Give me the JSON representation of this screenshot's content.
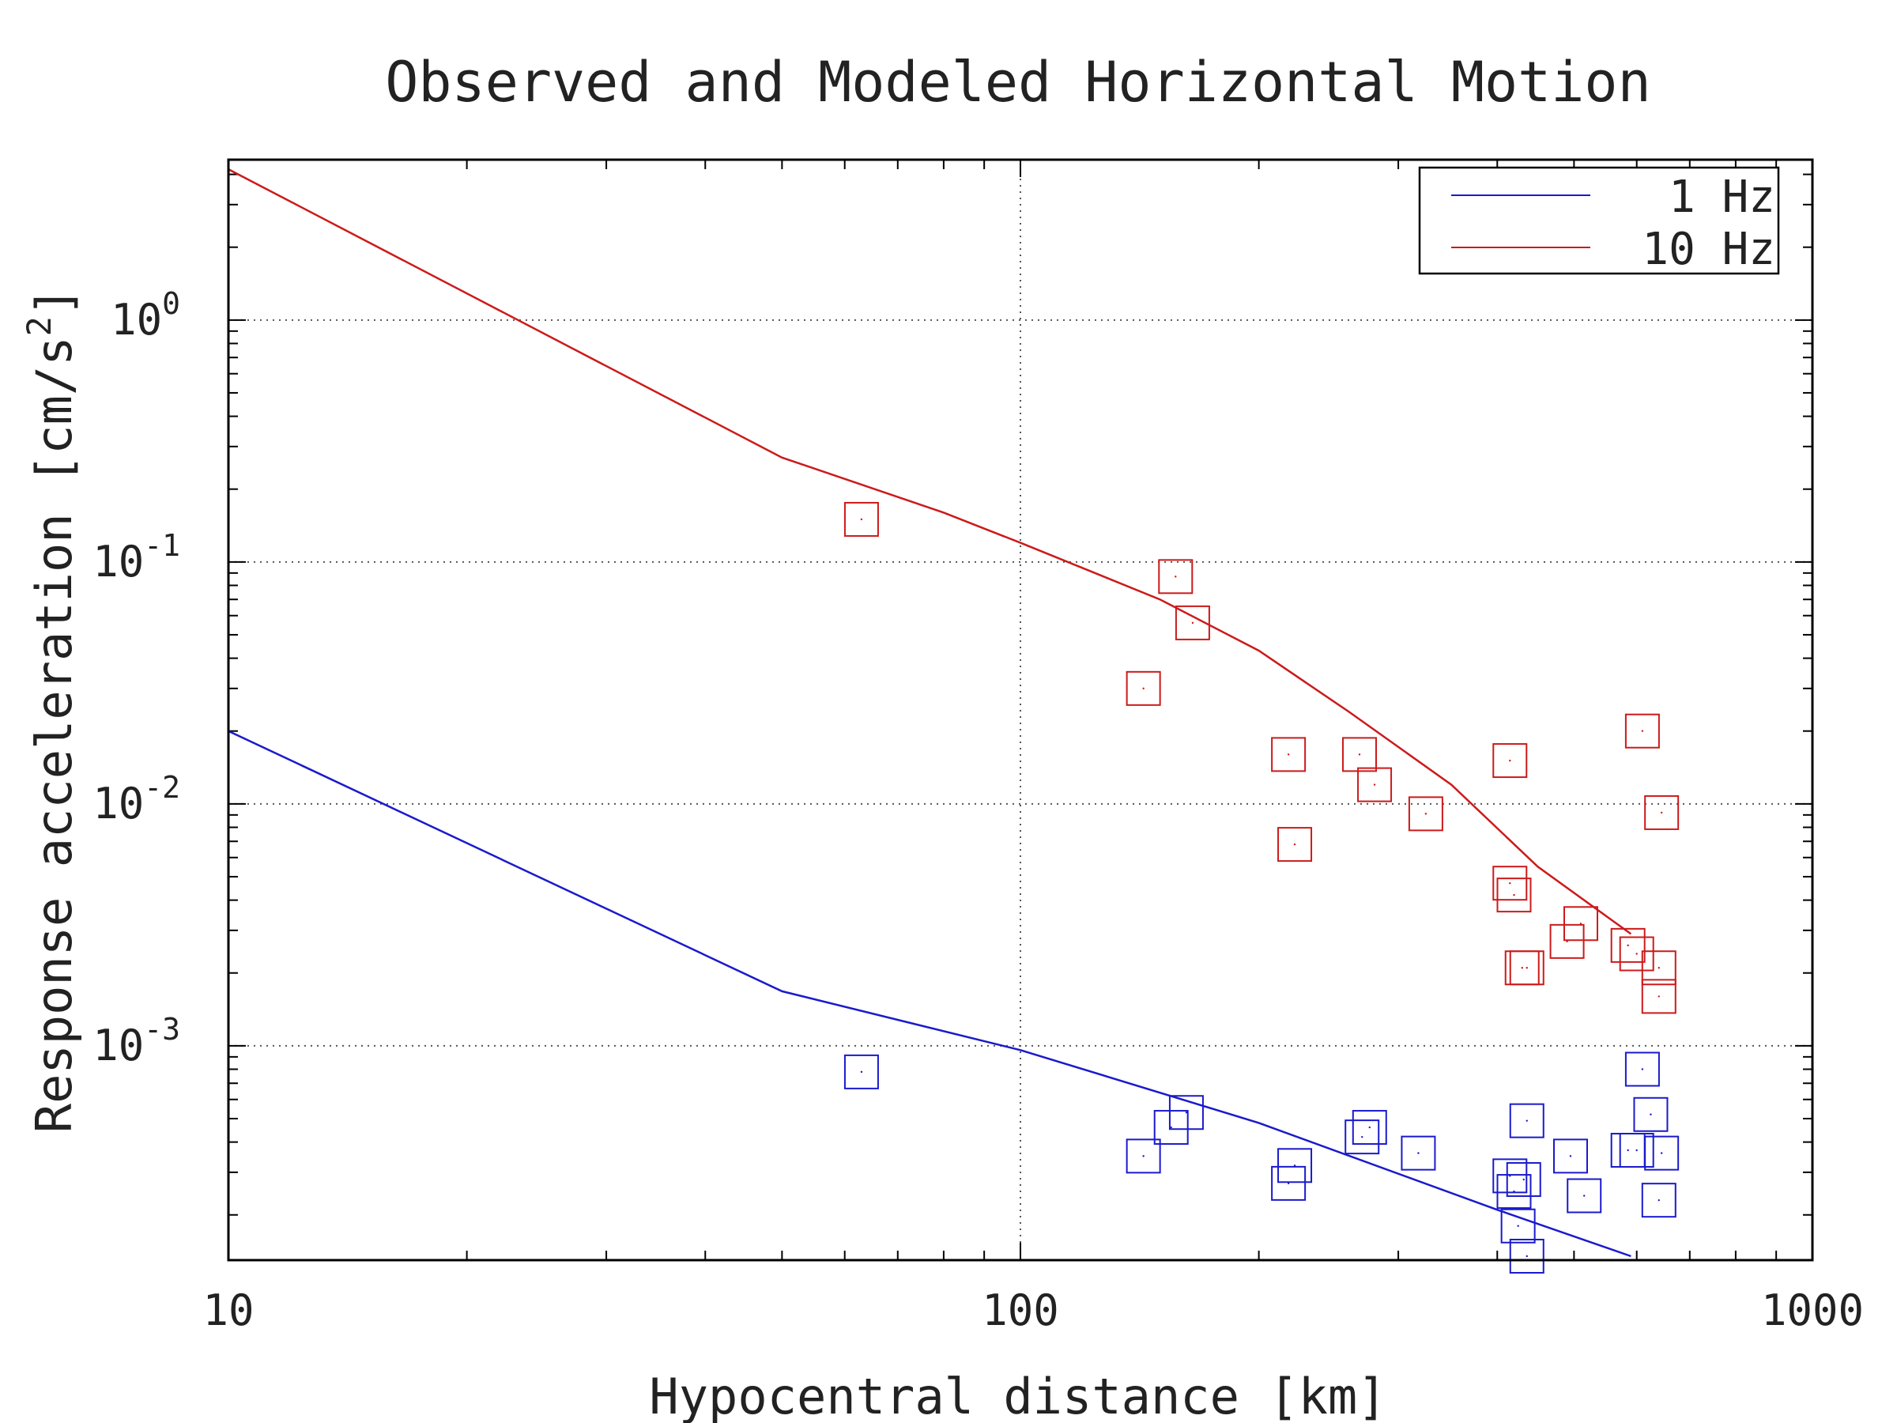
{
  "chart_data": {
    "type": "scatter",
    "title": "Observed and Modeled Horizontal Motion",
    "xlabel": "Hypocentral distance [km]",
    "ylabel": "Response acceleration [cm/s",
    "ylabel_sup": "2",
    "ylabel_end": "]",
    "x_scale": "log",
    "y_scale": "log",
    "xlim": [
      10,
      1000
    ],
    "ylim": [
      0.00013,
      4.6
    ],
    "x_ticks": [
      {
        "value": 10,
        "label": "10"
      },
      {
        "value": 100,
        "label": "100"
      },
      {
        "value": 1000,
        "label": "1000"
      }
    ],
    "y_ticks": [
      {
        "value": 1,
        "base": "10",
        "exp": "0"
      },
      {
        "value": 0.1,
        "base": "10",
        "exp": "-1"
      },
      {
        "value": 0.01,
        "base": "10",
        "exp": "-2"
      },
      {
        "value": 0.001,
        "base": "10",
        "exp": "-3"
      }
    ],
    "grid": "dotted at major ticks",
    "legend_position": "top-right",
    "series": [
      {
        "name": "1 Hz",
        "color": "#1a1acc",
        "model_line": [
          [
            10,
            0.02
          ],
          [
            50,
            0.00168
          ],
          [
            100,
            0.00096
          ],
          [
            200,
            0.00048
          ],
          [
            400,
            0.00021
          ],
          [
            590,
            0.000135
          ]
        ],
        "observed": [
          [
            63,
            0.00078
          ],
          [
            143,
            0.00035
          ],
          [
            155,
            0.00046
          ],
          [
            162,
            0.00053
          ],
          [
            218,
            0.00027
          ],
          [
            222,
            0.00032
          ],
          [
            270,
            0.00042
          ],
          [
            276,
            0.00046
          ],
          [
            318,
            0.00036
          ],
          [
            415,
            0.00029
          ],
          [
            420,
            0.00025
          ],
          [
            425,
            0.00018
          ],
          [
            432,
            0.00028
          ],
          [
            436,
            0.000135
          ],
          [
            436,
            0.00049
          ],
          [
            495,
            0.00035
          ],
          [
            515,
            0.00024
          ],
          [
            585,
            0.00037
          ],
          [
            600,
            0.00037
          ],
          [
            610,
            0.0008
          ],
          [
            625,
            0.00052
          ],
          [
            645,
            0.00036
          ],
          [
            640,
            0.00023
          ]
        ]
      },
      {
        "name": "10 Hz",
        "color": "#cc1a1a",
        "model_line": [
          [
            10,
            4.2
          ],
          [
            50,
            0.27
          ],
          [
            80,
            0.16
          ],
          [
            100,
            0.12
          ],
          [
            150,
            0.07
          ],
          [
            200,
            0.043
          ],
          [
            260,
            0.024
          ],
          [
            350,
            0.012
          ],
          [
            450,
            0.0055
          ],
          [
            590,
            0.0029
          ]
        ],
        "observed": [
          [
            63,
            0.15
          ],
          [
            143,
            0.03
          ],
          [
            157,
            0.087
          ],
          [
            165,
            0.056
          ],
          [
            218,
            0.016
          ],
          [
            222,
            0.0068
          ],
          [
            268,
            0.016
          ],
          [
            280,
            0.012
          ],
          [
            325,
            0.0091
          ],
          [
            415,
            0.0151
          ],
          [
            415,
            0.0047
          ],
          [
            420,
            0.0042
          ],
          [
            430,
            0.0021
          ],
          [
            436,
            0.0021
          ],
          [
            490,
            0.0027
          ],
          [
            510,
            0.0032
          ],
          [
            585,
            0.0026
          ],
          [
            600,
            0.0024
          ],
          [
            610,
            0.02
          ],
          [
            640,
            0.0021
          ],
          [
            645,
            0.0092
          ],
          [
            640,
            0.0016
          ]
        ]
      }
    ]
  }
}
